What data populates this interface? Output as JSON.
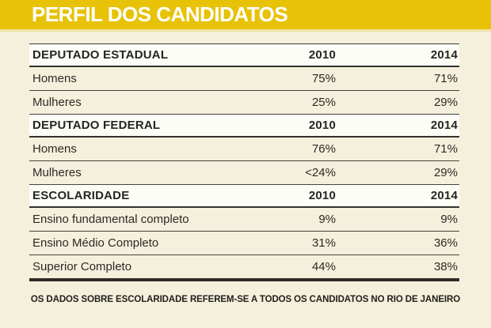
{
  "title": "PERFIL DOS CANDIDATOS",
  "footer_note": "OS DADOS SOBRE ESCOLARIDADE REFEREM-SE A TODOS OS CANDIDATOS NO RIO DE JANEIRO",
  "colors": {
    "band_yellow": "#e8c207",
    "background_cream": "#f5f0dc",
    "header_row_white": "#fdfdf8",
    "rule_dark": "#32312c",
    "title_text": "#ffffff",
    "body_text": "#2b2a25"
  },
  "chart_data": {
    "type": "table",
    "title": "PERFIL DOS CANDIDATOS",
    "columns": [
      "",
      "2010",
      "2014"
    ],
    "sections": [
      {
        "title": "DEPUTADO ESTADUAL",
        "rows": [
          {
            "label": "Homens",
            "v2010": "75%",
            "v2014": "71%"
          },
          {
            "label": "Mulheres",
            "v2010": "25%",
            "v2014": "29%"
          }
        ]
      },
      {
        "title": "DEPUTADO FEDERAL",
        "rows": [
          {
            "label": "Homens",
            "v2010": "76%",
            "v2014": "71%"
          },
          {
            "label": "Mulheres",
            "v2010": "<24%",
            "v2014": "29%"
          }
        ]
      },
      {
        "title": "ESCOLARIDADE",
        "rows": [
          {
            "label": "Ensino fundamental completo",
            "v2010": "9%",
            "v2014": "9%"
          },
          {
            "label": "Ensino Médio Completo",
            "v2010": "31%",
            "v2014": "36%"
          },
          {
            "label": "Superior Completo",
            "v2010": "44%",
            "v2014": "38%"
          }
        ]
      }
    ],
    "footnote": "OS DADOS SOBRE ESCOLARIDADE REFEREM-SE A TODOS OS CANDIDATOS NO RIO DE JANEIRO"
  }
}
